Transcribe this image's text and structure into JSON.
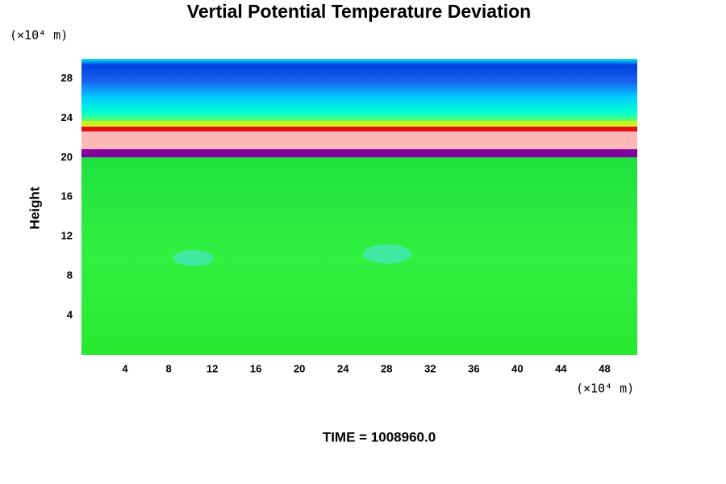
{
  "chart_data": {
    "type": "contour",
    "title": "Vertial Potential Temperature Deviation",
    "ylabel": "Height",
    "x_unit": "(×10⁴ m)",
    "y_unit": "(×10⁴ m)",
    "time_label": "TIME = 1008960.0",
    "xlim": [
      0,
      51
    ],
    "ylim": [
      0,
      30
    ],
    "xticks": [
      4,
      8,
      12,
      16,
      20,
      24,
      28,
      32,
      36,
      40,
      44,
      48
    ],
    "yticks": [
      4,
      8,
      12,
      16,
      20,
      24,
      28
    ]
  }
}
